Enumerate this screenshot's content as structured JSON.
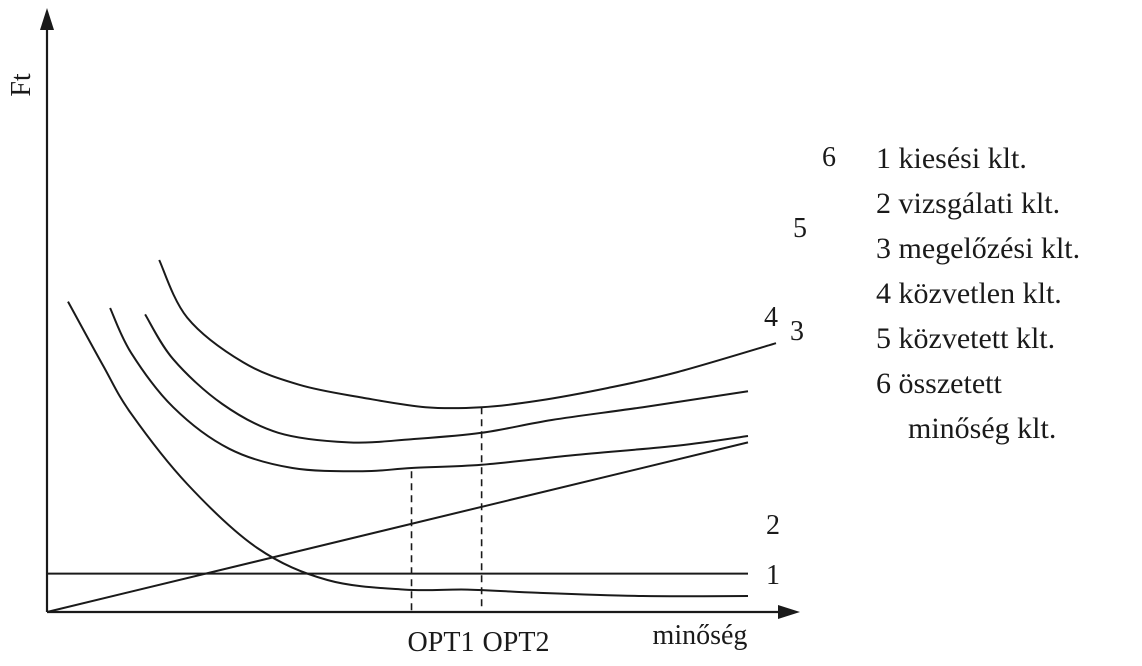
{
  "chart_data": {
    "type": "line",
    "title": "",
    "xlabel": "minőség",
    "ylabel": "Ft",
    "grid": false,
    "xlim": [
      0,
      100
    ],
    "ylim": [
      0,
      100
    ],
    "x_ticks": [
      "OPT1",
      "OPT2"
    ],
    "legend_position": "right",
    "series": [
      {
        "name": "1",
        "x": [
          3,
          8,
          12,
          20,
          30,
          40,
          51,
          60,
          70,
          85,
          100
        ],
        "y": [
          97,
          77,
          62,
          40,
          20,
          10,
          7,
          7,
          6,
          5,
          5
        ]
      },
      {
        "name": "2",
        "x": [
          0,
          100
        ],
        "y": [
          12,
          12
        ]
      },
      {
        "name": "3",
        "x": [
          0,
          100
        ],
        "y": [
          0,
          53
        ]
      },
      {
        "name": "4",
        "x": [
          9,
          12,
          18,
          26,
          35,
          45,
          52,
          62,
          75,
          90,
          100
        ],
        "y": [
          95,
          81,
          64,
          51,
          45,
          44,
          45,
          46,
          49,
          52,
          55
        ]
      },
      {
        "name": "5",
        "x": [
          14,
          18,
          25,
          33,
          43,
          52,
          62,
          72,
          85,
          100
        ],
        "y": [
          93,
          79,
          65,
          56,
          53,
          54,
          56,
          60,
          64,
          69
        ]
      },
      {
        "name": "6",
        "x": [
          16,
          20,
          28,
          36,
          45,
          54,
          62,
          70,
          80,
          90,
          104
        ],
        "y": [
          110,
          92,
          78,
          71,
          67,
          64,
          64,
          66,
          70,
          75,
          84
        ]
      }
    ],
    "curve_labels": [
      "1",
      "2",
      "3",
      "4",
      "5",
      "6"
    ],
    "optima": [
      {
        "label": "OPT1",
        "x": 52,
        "y": 44
      },
      {
        "label": "OPT2",
        "x": 62,
        "y": 64
      }
    ]
  },
  "legend": {
    "items": [
      "1 kiesési klt.",
      "2 vizsgálati klt.",
      "3 megelőzési klt.",
      "4 közvetlen klt.",
      "5 közvetett klt.",
      "6 összetett"
    ],
    "item6_cont": "minőség klt."
  }
}
